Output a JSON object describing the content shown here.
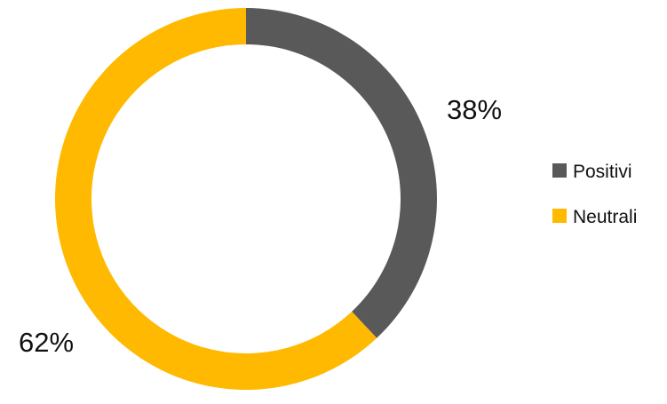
{
  "chart_data": {
    "type": "pie",
    "variant": "donut",
    "categories": [
      "Positivi",
      "Neutrali"
    ],
    "values": [
      38,
      62
    ],
    "value_labels": [
      "38%",
      "62%"
    ],
    "colors": [
      "#595959",
      "#FFB900"
    ],
    "start_angle_deg": 0,
    "direction": "clockwise",
    "legend": {
      "position": "right",
      "entries": [
        "Positivi",
        "Neutrali"
      ]
    }
  }
}
